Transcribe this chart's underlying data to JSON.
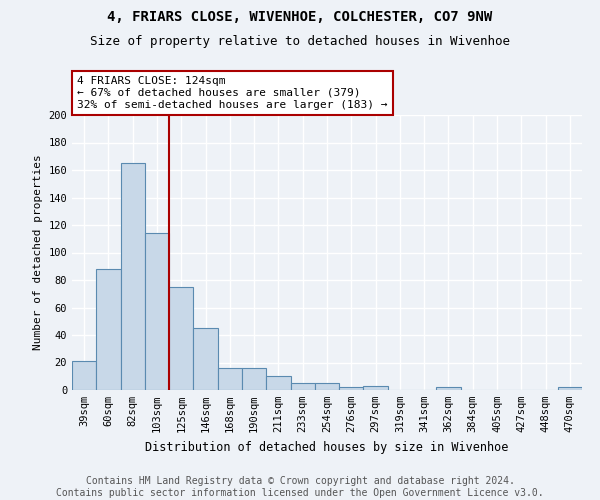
{
  "title1": "4, FRIARS CLOSE, WIVENHOE, COLCHESTER, CO7 9NW",
  "title2": "Size of property relative to detached houses in Wivenhoe",
  "xlabel": "Distribution of detached houses by size in Wivenhoe",
  "ylabel": "Number of detached properties",
  "bins": [
    "39sqm",
    "60sqm",
    "82sqm",
    "103sqm",
    "125sqm",
    "146sqm",
    "168sqm",
    "190sqm",
    "211sqm",
    "233sqm",
    "254sqm",
    "276sqm",
    "297sqm",
    "319sqm",
    "341sqm",
    "362sqm",
    "384sqm",
    "405sqm",
    "427sqm",
    "448sqm",
    "470sqm"
  ],
  "values": [
    21,
    88,
    165,
    114,
    75,
    45,
    16,
    16,
    10,
    5,
    5,
    2,
    3,
    0,
    0,
    2,
    0,
    0,
    0,
    0,
    2
  ],
  "bar_color": "#c8d8e8",
  "bar_edge_color": "#5a8ab0",
  "vline_x_index": 4,
  "vline_color": "#aa0000",
  "annotation_text": "4 FRIARS CLOSE: 124sqm\n← 67% of detached houses are smaller (379)\n32% of semi-detached houses are larger (183) →",
  "annotation_box_color": "white",
  "annotation_box_edge_color": "#aa0000",
  "ylim": [
    0,
    200
  ],
  "yticks": [
    0,
    20,
    40,
    60,
    80,
    100,
    120,
    140,
    160,
    180,
    200
  ],
  "footer": "Contains HM Land Registry data © Crown copyright and database right 2024.\nContains public sector information licensed under the Open Government Licence v3.0.",
  "bg_color": "#eef2f7",
  "grid_color": "#ffffff",
  "title1_fontsize": 10,
  "title2_fontsize": 9,
  "annotation_fontsize": 8,
  "ylabel_fontsize": 8,
  "xlabel_fontsize": 8.5,
  "footer_fontsize": 7,
  "tick_fontsize": 7.5
}
